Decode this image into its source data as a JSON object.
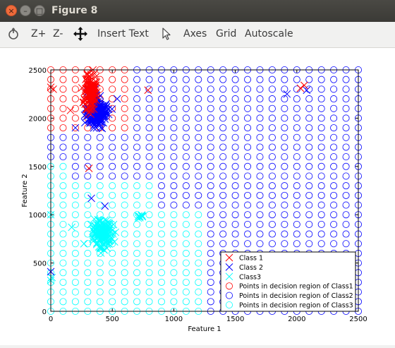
{
  "window": {
    "title": "Figure 8",
    "close_glyph": "×",
    "minimize_glyph": "–",
    "maximize_glyph": "□"
  },
  "toolbar": {
    "icons": [
      "rotate-icon",
      "pan-icon",
      "pointer-icon"
    ],
    "zoom_in": "Z+",
    "zoom_out": "Z-",
    "insert_text": "Insert Text",
    "axes": "Axes",
    "grid": "Grid",
    "autoscale": "Autoscale"
  },
  "chart_data": {
    "type": "scatter",
    "xlabel": "Feature 1",
    "ylabel": "Feature 2",
    "xlim": [
      0,
      2500
    ],
    "ylim": [
      0,
      2500
    ],
    "xticks": [
      0,
      500,
      1000,
      1500,
      2000,
      2500
    ],
    "yticks": [
      0,
      500,
      1000,
      1500,
      2000,
      2500
    ],
    "grid": false,
    "legend_position": "bottom-right",
    "legend": [
      {
        "label": "Class 1",
        "marker": "x",
        "color": "#ff0000"
      },
      {
        "label": "Class 2",
        "marker": "x",
        "color": "#0000ff"
      },
      {
        "label": "Class3",
        "marker": "x",
        "color": "#00ffff"
      },
      {
        "label": "Points in decision region of Class1",
        "marker": "o",
        "color": "#ff0000"
      },
      {
        "label": "Points in decision region of Class2",
        "marker": "o",
        "color": "#0000ff"
      },
      {
        "label": "Points in decision region of Class3",
        "marker": "o",
        "color": "#00ffff"
      }
    ],
    "decision_grid": {
      "step": 100,
      "class1_region": [
        {
          "x": [
            0,
            600
          ],
          "y": [
            1900,
            2500
          ]
        }
      ],
      "class3_region": [
        {
          "x": [
            0,
            1200
          ],
          "y": [
            0,
            1000
          ]
        },
        {
          "x": [
            0,
            800
          ],
          "y": [
            1000,
            1300
          ]
        },
        {
          "x": [
            0,
            100
          ],
          "y": [
            1300,
            1500
          ]
        }
      ],
      "class2_region": "remaining"
    },
    "series": [
      {
        "name": "Class 1",
        "color": "#ff0000",
        "clusters": [
          {
            "center": [
              320,
              2280
            ],
            "spread": [
              40,
              180
            ],
            "n": 120
          }
        ],
        "points": [
          [
            0,
            2320
          ],
          [
            20,
            2300
          ],
          [
            160,
            2080
          ],
          [
            790,
            2290
          ],
          [
            2060,
            2340
          ],
          [
            2030,
            2310
          ],
          [
            310,
            1480
          ],
          [
            320,
            2160
          ]
        ]
      },
      {
        "name": "Class 2",
        "color": "#0000ff",
        "clusters": [
          {
            "center": [
              380,
              2050
            ],
            "spread": [
              70,
              110
            ],
            "n": 170
          },
          {
            "center": [
              340,
              2240
            ],
            "spread": [
              40,
              40
            ],
            "n": 25
          }
        ],
        "points": [
          [
            330,
            1170
          ],
          [
            440,
            1090
          ],
          [
            0,
            410
          ],
          [
            1920,
            2250
          ],
          [
            2080,
            2290
          ],
          [
            540,
            2200
          ],
          [
            200,
            1900
          ]
        ]
      },
      {
        "name": "Class3",
        "color": "#00ffff",
        "clusters": [
          {
            "center": [
              420,
              800
            ],
            "spread": [
              60,
              110
            ],
            "n": 150
          },
          {
            "center": [
              720,
              980
            ],
            "spread": [
              25,
              20
            ],
            "n": 10
          }
        ],
        "points": [
          [
            0,
            320
          ],
          [
            10,
            350
          ],
          [
            0,
            1000
          ],
          [
            170,
            870
          ],
          [
            270,
            700
          ]
        ]
      }
    ]
  }
}
